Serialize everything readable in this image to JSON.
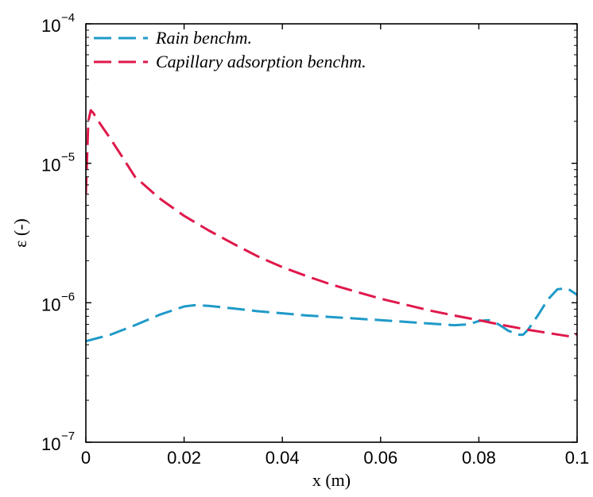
{
  "chart_data": {
    "type": "line",
    "xlabel": "x (m)",
    "ylabel": "ε (-)",
    "xscale": "linear",
    "yscale": "log",
    "xlim": [
      0,
      0.1
    ],
    "ylim": [
      1e-07,
      0.0001
    ],
    "grid": false,
    "legend_position": "top-left",
    "x_ticks": [
      {
        "value": 0,
        "label": "0"
      },
      {
        "value": 0.02,
        "label": "0.02"
      },
      {
        "value": 0.04,
        "label": "0.04"
      },
      {
        "value": 0.06,
        "label": "0.06"
      },
      {
        "value": 0.08,
        "label": "0.08"
      },
      {
        "value": 0.1,
        "label": "0.1"
      }
    ],
    "y_ticks": [
      {
        "value": 1e-07,
        "base": "10",
        "exp": "−7"
      },
      {
        "value": 1e-06,
        "base": "10",
        "exp": "−6"
      },
      {
        "value": 1e-05,
        "base": "10",
        "exp": "−5"
      },
      {
        "value": 0.0001,
        "base": "10",
        "exp": "−4"
      }
    ],
    "series": [
      {
        "name": "Rain benchm.",
        "color": "#1f9ac8",
        "style": "dashed",
        "x": [
          0,
          0.005,
          0.01,
          0.015,
          0.02,
          0.022,
          0.025,
          0.03,
          0.035,
          0.04,
          0.045,
          0.05,
          0.055,
          0.06,
          0.065,
          0.07,
          0.075,
          0.078,
          0.08,
          0.082,
          0.084,
          0.086,
          0.088,
          0.089,
          0.09,
          0.092,
          0.094,
          0.096,
          0.098,
          0.1
        ],
        "y": [
          5.3e-07,
          5.9e-07,
          6.9e-07,
          8.2e-07,
          9.4e-07,
          9.6e-07,
          9.5e-07,
          9.1e-07,
          8.7e-07,
          8.4e-07,
          8.1e-07,
          7.9e-07,
          7.7e-07,
          7.5e-07,
          7.3e-07,
          7.1e-07,
          6.9e-07,
          7e-07,
          7.4e-07,
          7.5e-07,
          7e-07,
          6.3e-07,
          5.9e-07,
          5.9e-07,
          6.4e-07,
          8.1e-07,
          1.05e-06,
          1.25e-06,
          1.27e-06,
          1.14e-06
        ]
      },
      {
        "name": "Capillary adsorption benchm.",
        "color": "#e0184a",
        "style": "dashed",
        "x": [
          0,
          0.0005,
          0.001,
          0.0015,
          0.002,
          0.003,
          0.005,
          0.0075,
          0.01,
          0.015,
          0.02,
          0.025,
          0.03,
          0.035,
          0.04,
          0.045,
          0.05,
          0.055,
          0.06,
          0.065,
          0.07,
          0.075,
          0.08,
          0.085,
          0.09,
          0.095,
          0.099,
          0.1
        ],
        "y": [
          6e-06,
          2e-05,
          2.4e-05,
          2.3e-05,
          2.15e-05,
          1.9e-05,
          1.5e-05,
          1.1e-05,
          8e-06,
          5.6e-06,
          4.2e-06,
          3.3e-06,
          2.65e-06,
          2.15e-06,
          1.8e-06,
          1.55e-06,
          1.35e-06,
          1.2e-06,
          1.07e-06,
          9.7e-07,
          8.8e-07,
          8.1e-07,
          7.5e-07,
          6.9e-07,
          6.4e-07,
          6e-07,
          5.7e-07,
          6e-07
        ]
      }
    ]
  }
}
